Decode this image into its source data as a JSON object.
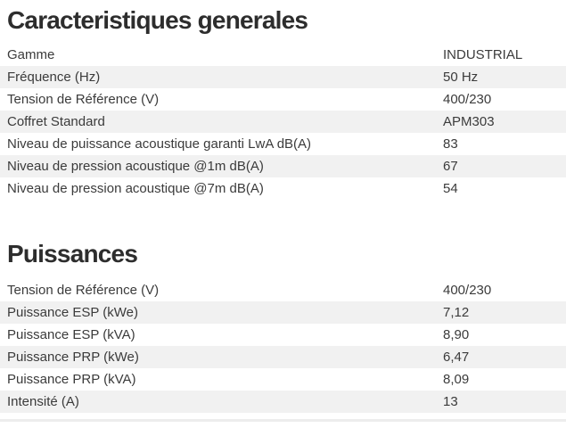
{
  "theme": {
    "background": "#ffffff",
    "stripe_color": "#f1f1f1",
    "text_color": "#3b3b3b",
    "heading_color": "#2d2d2d"
  },
  "sections": [
    {
      "title": "Caracteristiques generales",
      "rows": [
        {
          "label": "Gamme",
          "value": "INDUSTRIAL"
        },
        {
          "label": "Fréquence (Hz)",
          "value": "50 Hz"
        },
        {
          "label": "Tension de Référence (V)",
          "value": "400/230"
        },
        {
          "label": "Coffret Standard",
          "value": "APM303"
        },
        {
          "label": "Niveau de puissance acoustique garanti LwA dB(A)",
          "value": "83"
        },
        {
          "label": "Niveau de pression acoustique @1m dB(A)",
          "value": "67"
        },
        {
          "label": "Niveau de pression acoustique @7m dB(A)",
          "value": "54"
        }
      ]
    },
    {
      "title": "Puissances",
      "rows": [
        {
          "label": "Tension de Référence (V)",
          "value": "400/230"
        },
        {
          "label": "Puissance ESP (kWe)",
          "value": "7,12"
        },
        {
          "label": "Puissance ESP (kVA)",
          "value": "8,90"
        },
        {
          "label": "Puissance PRP (kWe)",
          "value": "6,47"
        },
        {
          "label": "Puissance PRP (kVA)",
          "value": "8,09"
        },
        {
          "label": "Intensité (A)",
          "value": "13"
        }
      ]
    }
  ]
}
